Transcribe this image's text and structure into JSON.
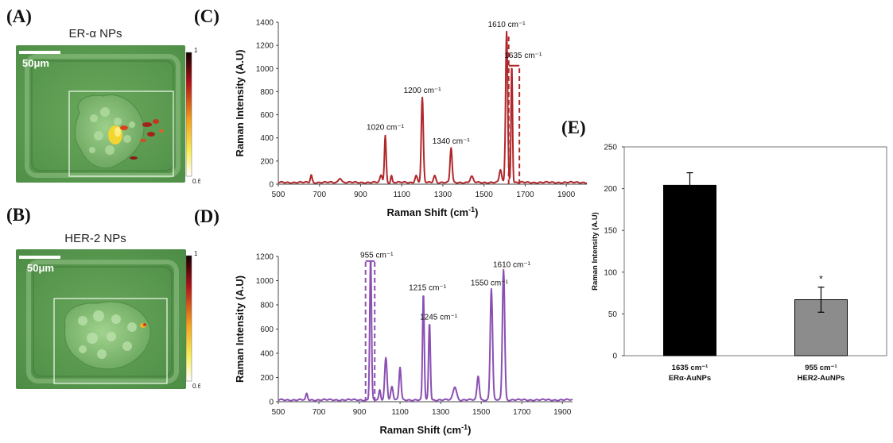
{
  "panel_labels": {
    "a": "(A)",
    "b": "(B)",
    "c": "(C)",
    "d": "(D)",
    "e": "(E)"
  },
  "micro_a": {
    "title": "ER-α NPs",
    "scale_bar": "50μm",
    "cbar_max": "1",
    "cbar_min": "0.6"
  },
  "micro_b": {
    "title": "HER-2 NPs",
    "scale_bar": "50μm",
    "cbar_max": "1",
    "cbar_min": "0.6"
  },
  "colors": {
    "spectrum_c": "#b0282c",
    "spectrum_d": "#8a4fb3",
    "bar_1": "#000000",
    "bar_2": "#8c8c8c",
    "tissue_green": "#5b9e52"
  },
  "chart_data": [
    {
      "type": "line",
      "panel": "(C)",
      "xlabel": "Raman Shift (cm-1)",
      "ylabel": "Raman Intensity (A.U)",
      "xlim": [
        500,
        2000
      ],
      "ylim": [
        0,
        1400
      ],
      "x_ticks": [
        500,
        700,
        900,
        1100,
        1300,
        1500,
        1700,
        1900
      ],
      "y_ticks": [
        0,
        200,
        400,
        600,
        800,
        1000,
        1200,
        1400
      ],
      "baseline": 15,
      "peaks": [
        {
          "x": 660,
          "y": 65,
          "w": 6
        },
        {
          "x": 800,
          "y": 40,
          "w": 10
        },
        {
          "x": 1000,
          "y": 60,
          "w": 8
        },
        {
          "x": 1020,
          "y": 405,
          "w": 6
        },
        {
          "x": 1050,
          "y": 60,
          "w": 5
        },
        {
          "x": 1170,
          "y": 60,
          "w": 8
        },
        {
          "x": 1200,
          "y": 730,
          "w": 7
        },
        {
          "x": 1260,
          "y": 60,
          "w": 8
        },
        {
          "x": 1340,
          "y": 300,
          "w": 7
        },
        {
          "x": 1440,
          "y": 50,
          "w": 10
        },
        {
          "x": 1580,
          "y": 110,
          "w": 8
        },
        {
          "x": 1610,
          "y": 1310,
          "w": 7
        },
        {
          "x": 1635,
          "y": 1030,
          "w": 5
        }
      ],
      "annotations": [
        {
          "text": "1020 cm⁻¹",
          "x": 1020,
          "y": 470
        },
        {
          "text": "1200 cm⁻¹",
          "x": 1200,
          "y": 790
        },
        {
          "text": "1340 cm⁻¹",
          "x": 1340,
          "y": 350
        },
        {
          "text": "1610 cm⁻¹",
          "x": 1610,
          "y": 1360
        },
        {
          "text": "1635 cm⁻¹",
          "x": 1690,
          "y": 1090
        }
      ],
      "dashed_marks": [
        1620,
        1672
      ]
    },
    {
      "type": "line",
      "panel": "(D)",
      "xlabel": "Raman Shift (cm-1)",
      "ylabel": "Raman Intensity (A.U)",
      "xlim": [
        500,
        1950
      ],
      "ylim": [
        0,
        1200
      ],
      "x_ticks": [
        500,
        700,
        900,
        1100,
        1300,
        1500,
        1700,
        1900
      ],
      "y_ticks": [
        0,
        200,
        400,
        600,
        800,
        1000,
        1200
      ],
      "baseline": 15,
      "peaks": [
        {
          "x": 640,
          "y": 50,
          "w": 6
        },
        {
          "x": 955,
          "y": 1170,
          "w": 6
        },
        {
          "x": 1000,
          "y": 80,
          "w": 6
        },
        {
          "x": 1030,
          "y": 350,
          "w": 8
        },
        {
          "x": 1060,
          "y": 110,
          "w": 8
        },
        {
          "x": 1100,
          "y": 270,
          "w": 7
        },
        {
          "x": 1215,
          "y": 880,
          "w": 6
        },
        {
          "x": 1245,
          "y": 640,
          "w": 6
        },
        {
          "x": 1370,
          "y": 110,
          "w": 12
        },
        {
          "x": 1485,
          "y": 200,
          "w": 8
        },
        {
          "x": 1550,
          "y": 920,
          "w": 8
        },
        {
          "x": 1610,
          "y": 1080,
          "w": 8
        }
      ],
      "annotations": [
        {
          "text": "955 cm⁻¹",
          "x": 985,
          "y": 1190
        },
        {
          "text": "1215 cm⁻¹",
          "x": 1235,
          "y": 920
        },
        {
          "text": "1245 cm⁻¹",
          "x": 1290,
          "y": 680
        },
        {
          "text": "1550 cm⁻¹",
          "x": 1540,
          "y": 960
        },
        {
          "text": "1610 cm⁻¹",
          "x": 1650,
          "y": 1110
        }
      ],
      "dashed_marks": [
        930,
        975
      ]
    },
    {
      "type": "bar",
      "panel": "(E)",
      "ylabel": "Raman Intensity (A.U)",
      "ylim": [
        0,
        250
      ],
      "y_ticks": [
        0,
        50,
        100,
        150,
        200,
        250
      ],
      "categories": [
        {
          "line1": "1635 cm⁻¹",
          "line2": "ERα-AuNPs"
        },
        {
          "line1": "955 cm⁻¹",
          "line2": "HER2-AuNPs"
        }
      ],
      "values": [
        204,
        67
      ],
      "errors": [
        15,
        15
      ],
      "significance": [
        "",
        "*"
      ]
    }
  ]
}
